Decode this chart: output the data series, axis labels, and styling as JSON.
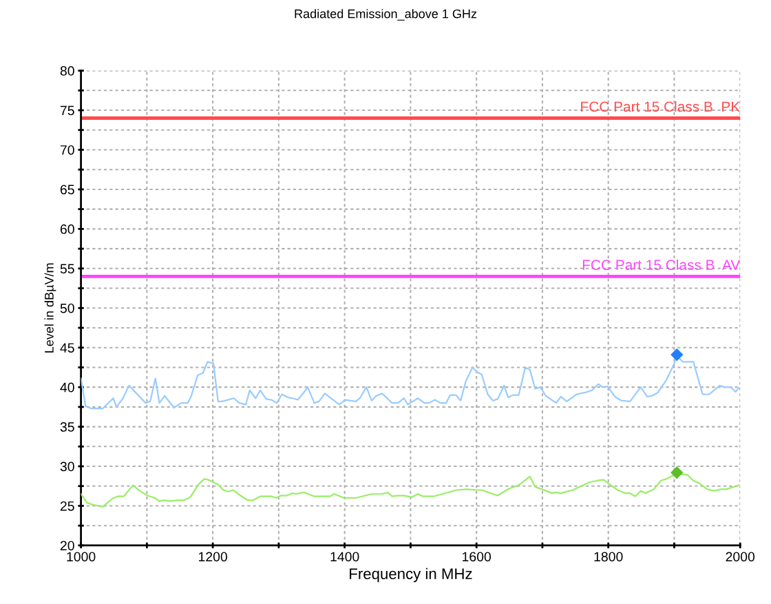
{
  "chart_data": {
    "type": "line",
    "title": "Radiated Emission_above 1 GHz",
    "xlabel": "Frequency in MHz",
    "ylabel": "Level in dBµV/m",
    "xlim": [
      1000,
      2000
    ],
    "ylim": [
      20,
      80
    ],
    "xticks": [
      1000,
      {
        "value": 1100,
        "label": null
      },
      1200,
      {
        "value": 1300,
        "label": null
      },
      1400,
      {
        "value": 1500,
        "label": null
      },
      1600,
      {
        "value": 1700,
        "label": null
      },
      1800,
      {
        "value": 1900,
        "label": null
      },
      2000
    ],
    "yticks": [
      20,
      {
        "value": 22.5,
        "label": null
      },
      25,
      {
        "value": 27.5,
        "label": null
      },
      30,
      {
        "value": 32.5,
        "label": null
      },
      35,
      {
        "value": 37.5,
        "label": null
      },
      40,
      {
        "value": 42.5,
        "label": null
      },
      45,
      {
        "value": 47.5,
        "label": null
      },
      50,
      {
        "value": 52.5,
        "label": null
      },
      55,
      {
        "value": 57.5,
        "label": null
      },
      60,
      {
        "value": 62.5,
        "label": null
      },
      65,
      {
        "value": 67.5,
        "label": null
      },
      70,
      {
        "value": 72.5,
        "label": null
      },
      75,
      {
        "value": 77.5,
        "label": null
      },
      80
    ],
    "grid": true,
    "line_style": "solid",
    "marker": "none",
    "series": [
      {
        "color": "#99ccff",
        "x": [
          1000,
          1007,
          1016,
          1033,
          1049,
          1054,
          1063,
          1073,
          1098,
          1105,
          1113,
          1119,
          1127,
          1141,
          1152,
          1162,
          1167,
          1177,
          1185,
          1192,
          1201,
          1208,
          1214,
          1232,
          1240,
          1250,
          1256,
          1265,
          1272,
          1281,
          1289,
          1297,
          1305,
          1314,
          1321,
          1329,
          1336,
          1344,
          1354,
          1361,
          1370,
          1392,
          1401,
          1417,
          1423,
          1433,
          1441,
          1448,
          1457,
          1472,
          1481,
          1490,
          1496,
          1511,
          1521,
          1528,
          1537,
          1545,
          1554,
          1560,
          1569,
          1576,
          1584,
          1594,
          1601,
          1608,
          1617,
          1625,
          1632,
          1642,
          1648,
          1655,
          1664,
          1674,
          1681,
          1689,
          1697,
          1705,
          1721,
          1728,
          1737,
          1752,
          1768,
          1775,
          1785,
          1791,
          1799,
          1810,
          1820,
          1833,
          1849,
          1859,
          1866,
          1875,
          1888,
          1899,
          1904,
          1913,
          1929,
          1943,
          1953,
          1969,
          1977,
          1986,
          1993,
          1998
        ],
        "values": [
          41.1,
          37.6,
          37.3,
          37.3,
          38.6,
          37.5,
          38.5,
          40.2,
          38.0,
          38.2,
          41.1,
          38.0,
          38.9,
          37.4,
          38.0,
          38.0,
          38.8,
          41.5,
          41.8,
          43.2,
          43.0,
          38.2,
          38.2,
          38.6,
          38.0,
          37.8,
          39.6,
          38.6,
          39.6,
          38.5,
          38.4,
          38.0,
          39.1,
          38.7,
          38.6,
          38.4,
          39.1,
          40.0,
          38.0,
          38.2,
          39.2,
          37.8,
          38.4,
          38.2,
          38.6,
          40.0,
          38.3,
          38.9,
          39.2,
          38.0,
          38.0,
          38.6,
          37.8,
          38.6,
          38.0,
          38.0,
          38.4,
          38.0,
          38.0,
          39.0,
          39.0,
          38.3,
          40.8,
          42.5,
          41.9,
          41.6,
          39.1,
          38.3,
          38.5,
          40.2,
          38.7,
          39.0,
          39.0,
          42.5,
          42.2,
          39.8,
          40.0,
          38.9,
          38.0,
          38.8,
          38.2,
          39.1,
          39.4,
          39.6,
          40.4,
          40.0,
          40.1,
          38.8,
          38.3,
          38.2,
          40.0,
          38.8,
          38.9,
          39.3,
          40.9,
          42.8,
          44.0,
          43.2,
          43.2,
          39.1,
          39.1,
          40.2,
          40.0,
          40.0,
          39.4,
          39.9
        ]
      },
      {
        "color": "#99ee66",
        "x": [
          1000,
          1009,
          1020,
          1033,
          1049,
          1056,
          1065,
          1079,
          1089,
          1101,
          1112,
          1119,
          1127,
          1136,
          1145,
          1156,
          1166,
          1177,
          1187,
          1193,
          1208,
          1216,
          1224,
          1231,
          1242,
          1253,
          1261,
          1272,
          1289,
          1297,
          1303,
          1312,
          1321,
          1326,
          1339,
          1354,
          1378,
          1384,
          1399,
          1417,
          1441,
          1457,
          1465,
          1472,
          1481,
          1490,
          1502,
          1511,
          1519,
          1535,
          1570,
          1585,
          1600,
          1608,
          1632,
          1650,
          1664,
          1681,
          1689,
          1699,
          1715,
          1721,
          1728,
          1746,
          1772,
          1784,
          1793,
          1799,
          1814,
          1825,
          1833,
          1841,
          1849,
          1857,
          1869,
          1880,
          1888,
          1904,
          1920,
          1929,
          1939,
          1950,
          1960,
          1971,
          1979,
          1998
        ],
        "values": [
          26.5,
          25.4,
          25.1,
          24.9,
          26.0,
          26.2,
          26.2,
          27.6,
          26.9,
          26.3,
          26.0,
          25.6,
          25.7,
          25.6,
          25.7,
          25.7,
          26.1,
          27.6,
          28.4,
          28.3,
          27.7,
          27.0,
          26.8,
          27.0,
          26.3,
          25.7,
          25.7,
          26.2,
          26.2,
          26.0,
          26.3,
          26.3,
          26.6,
          26.5,
          26.7,
          26.2,
          26.2,
          26.5,
          26.0,
          26.0,
          26.5,
          26.5,
          26.7,
          26.2,
          26.3,
          26.3,
          26.1,
          26.5,
          26.2,
          26.2,
          27.0,
          27.1,
          27.0,
          27.0,
          26.3,
          27.2,
          27.6,
          28.7,
          27.4,
          27.1,
          26.6,
          26.7,
          26.6,
          27.0,
          28.0,
          28.2,
          28.3,
          27.9,
          27.0,
          26.6,
          26.6,
          26.2,
          26.9,
          26.6,
          27.1,
          28.2,
          28.4,
          29.1,
          28.9,
          28.2,
          27.8,
          27.1,
          26.9,
          27.1,
          27.1,
          27.6
        ]
      },
      {
        "type": "scatter",
        "marker": "diamond",
        "color": "#1f7fff",
        "x": [
          1904
        ],
        "values": [
          44.1
        ]
      },
      {
        "type": "scatter",
        "marker": "diamond",
        "color": "#5cbf2a",
        "x": [
          1904
        ],
        "values": [
          29.2
        ]
      }
    ],
    "ref_lines": [
      {
        "axis": "y",
        "value": 74,
        "label": "FCC Part 15 Class B  PK",
        "color": "#ff4b4b",
        "line_style": "solid"
      },
      {
        "axis": "y",
        "value": 54,
        "label": "FCC Part 15 Class B  AV",
        "color": "#ff44ff",
        "line_style": "solid"
      }
    ]
  }
}
